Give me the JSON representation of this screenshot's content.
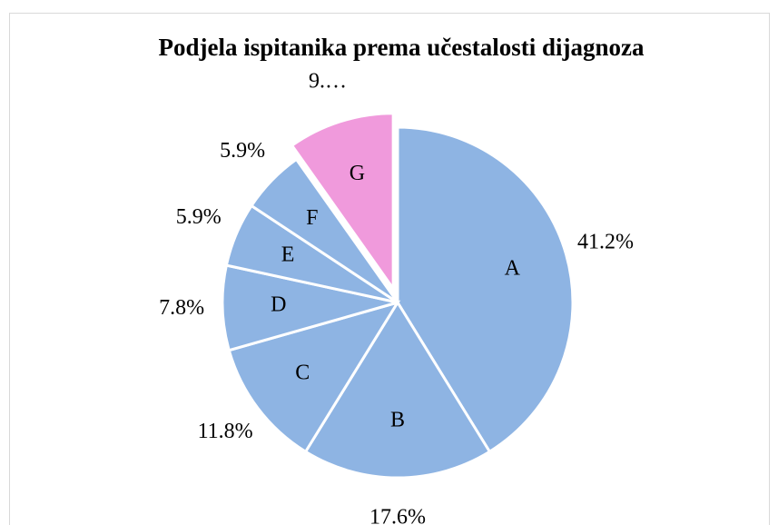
{
  "chart_data": {
    "type": "pie",
    "title": "Podjela ispitanika prema učestalosti dijagnoza",
    "categories": [
      "A",
      "B",
      "C",
      "D",
      "E",
      "F",
      "G"
    ],
    "values": [
      41.2,
      17.6,
      11.8,
      7.8,
      5.9,
      5.9,
      9.8
    ],
    "value_labels": [
      "41.2%",
      "17.6%",
      "11.8%",
      "7.8%",
      "5.9%",
      "5.9%",
      "9.…"
    ],
    "colors": [
      "#8eb4e3",
      "#8eb4e3",
      "#8eb4e3",
      "#8eb4e3",
      "#8eb4e3",
      "#8eb4e3",
      "#f09adc"
    ],
    "exploded": [
      false,
      false,
      false,
      false,
      false,
      false,
      true
    ]
  }
}
